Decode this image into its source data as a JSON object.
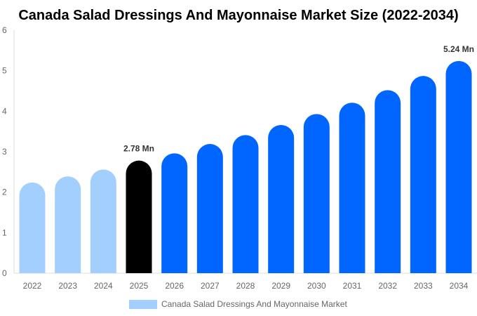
{
  "chart_data": {
    "type": "bar",
    "title": "Canada Salad Dressings And Mayonnaise Market Size (2022-2034)",
    "xlabel": "",
    "ylabel": "",
    "ylim": [
      0,
      6
    ],
    "yticks": [
      0,
      1,
      2,
      3,
      4,
      5,
      6
    ],
    "grid": false,
    "legend_placement": "bottom",
    "categories": [
      "2022",
      "2023",
      "2024",
      "2025",
      "2026",
      "2027",
      "2028",
      "2029",
      "2030",
      "2031",
      "2032",
      "2033",
      "2034"
    ],
    "series": [
      {
        "name": "Canada Salad Dressings And Mayonnaise Market",
        "values": [
          2.24,
          2.39,
          2.56,
          2.78,
          2.96,
          3.19,
          3.41,
          3.66,
          3.93,
          4.21,
          4.52,
          4.87,
          5.24
        ]
      }
    ],
    "bar_colors": [
      "#a3cfff",
      "#a3cfff",
      "#a3cfff",
      "#000000",
      "#0066ff",
      "#0066ff",
      "#0066ff",
      "#0066ff",
      "#0066ff",
      "#0066ff",
      "#0066ff",
      "#0066ff",
      "#0066ff"
    ],
    "legend_color": "#a3cfff",
    "annotations": [
      {
        "category": "2025",
        "text": "2.78 Mn"
      },
      {
        "category": "2034",
        "text": "5.24 Mn"
      }
    ]
  }
}
